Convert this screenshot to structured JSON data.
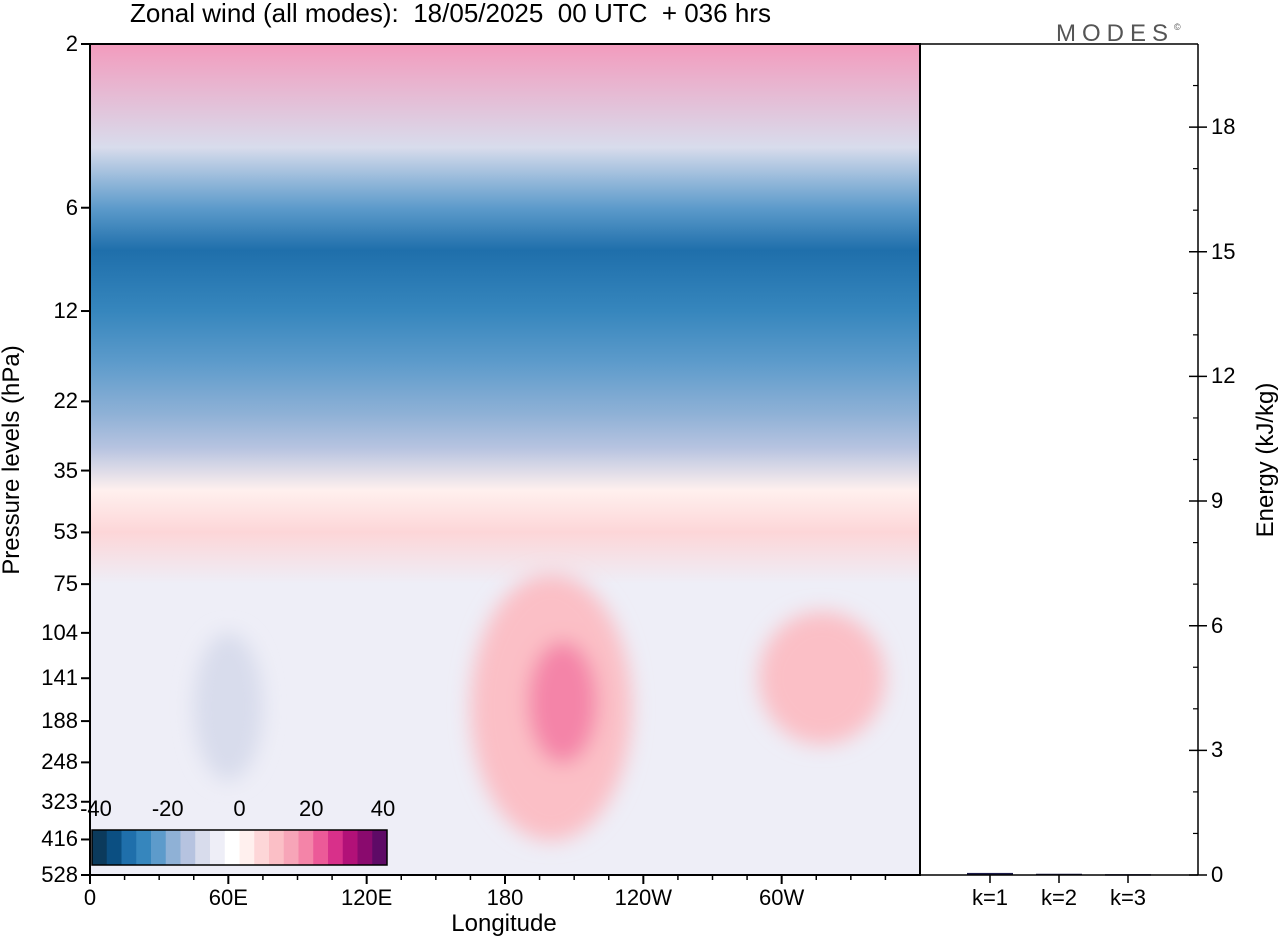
{
  "title": "Zonal wind (all modes):  18/05/2025  00 UTC  + 036 hrs",
  "logo": "MODES",
  "logo_mark": "©",
  "chart_data": [
    {
      "type": "heatmap",
      "title": "Zonal wind (all modes):  18/05/2025  00 UTC  + 036 hrs",
      "xlabel": "Longitude",
      "ylabel": "Pressure levels (hPa)",
      "x_ticks": [
        "0",
        "60E",
        "120E",
        "180",
        "120W",
        "60W"
      ],
      "y_ticks": [
        "2",
        "6",
        "12",
        "22",
        "35",
        "53",
        "75",
        "104",
        "141",
        "188",
        "248",
        "323",
        "416",
        "528"
      ],
      "y_scale": "log",
      "colorbar": {
        "ticks": [
          "-40",
          "-20",
          "0",
          "20",
          "40"
        ],
        "colors": [
          "#0b3a5c",
          "#0b4f82",
          "#1f6fab",
          "#3686bd",
          "#5d9bcb",
          "#8fb1d6",
          "#b6c3e0",
          "#d8dcec",
          "#eeeef7",
          "#ffffff",
          "#fff0ee",
          "#fdd6d8",
          "#fbbfc6",
          "#f7a5b8",
          "#f484a8",
          "#ec5a98",
          "#d8308a",
          "#b21178",
          "#8a0a6e",
          "#5e0a66"
        ]
      },
      "bands": [
        {
          "pressure": 2,
          "band_color": "#f39bbd"
        },
        {
          "pressure": 4,
          "band_color": "#d8dcec"
        },
        {
          "pressure": 6,
          "band_color": "#5d9bcb"
        },
        {
          "pressure": 8,
          "band_color": "#1f6fab"
        },
        {
          "pressure": 12,
          "band_color": "#3686bd"
        },
        {
          "pressure": 17,
          "band_color": "#5d9bcb"
        },
        {
          "pressure": 24,
          "band_color": "#8fb1d6"
        },
        {
          "pressure": 30,
          "band_color": "#b6c3e0"
        },
        {
          "pressure": 40,
          "band_color": "#fff0ee"
        },
        {
          "pressure": 53,
          "band_color": "#fdd6d8"
        },
        {
          "pressure": 75,
          "band_color": "#eeeef7"
        },
        {
          "pressure": 528,
          "band_color": "#eeeef7"
        }
      ],
      "features": [
        {
          "lon_range": [
            165,
            235
          ],
          "p_range": [
            70,
            420
          ],
          "color": "#fbbfc6"
        },
        {
          "lon_range": [
            190,
            220
          ],
          "p_range": [
            110,
            250
          ],
          "color": "#f484a8"
        },
        {
          "lon_range": [
            290,
            345
          ],
          "p_range": [
            90,
            220
          ],
          "color": "#fbbfc6"
        },
        {
          "lon_range": [
            45,
            75
          ],
          "p_range": [
            104,
            280
          ],
          "color": "#d8dcec"
        }
      ]
    },
    {
      "type": "bar",
      "categories": [
        "k=1",
        "k=2",
        "k=3"
      ],
      "values": [
        0.05,
        0.03,
        0.02
      ],
      "ylabel": "Energy (kJ/kg)",
      "ylim": [
        0,
        20
      ],
      "y_ticks": [
        "0",
        "3",
        "6",
        "9",
        "12",
        "15",
        "18"
      ]
    }
  ]
}
